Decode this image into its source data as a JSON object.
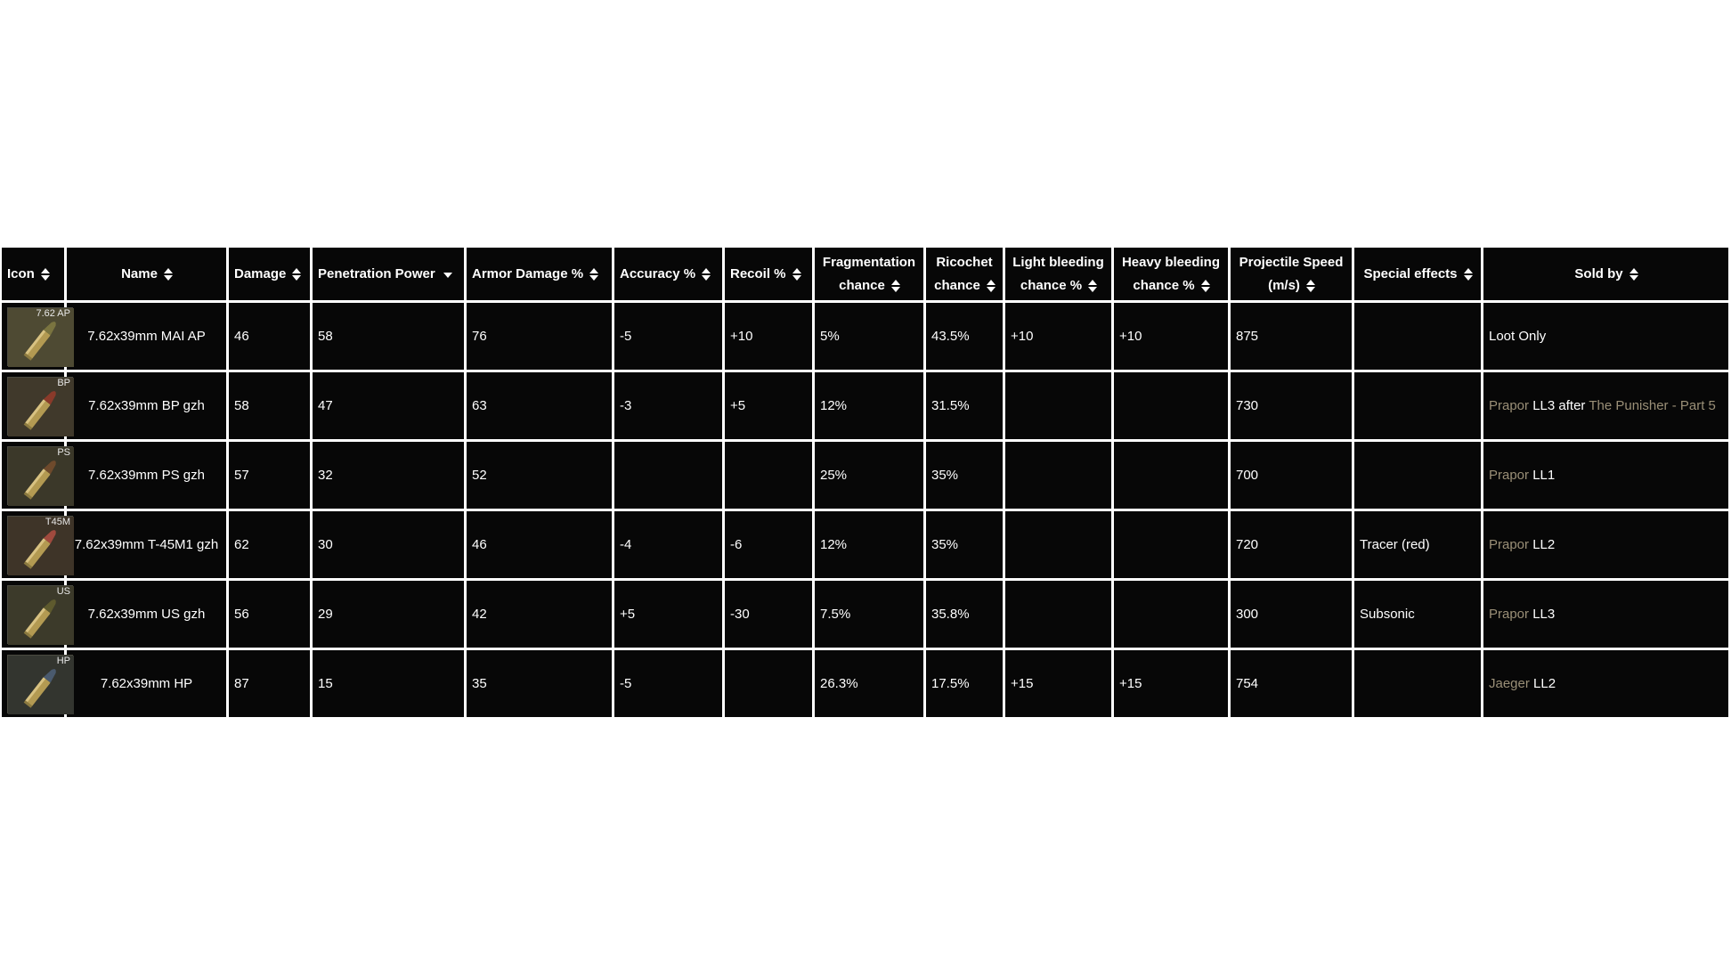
{
  "headers": {
    "icon": "Icon",
    "name": "Name",
    "damage": "Damage",
    "penetration": "Penetration Power",
    "armor": "Armor Damage %",
    "accuracy": "Accuracy %",
    "recoil": "Recoil %",
    "frag_l1": "Fragmentation",
    "frag_l2": "chance",
    "rico_l1": "Ricochet",
    "rico_l2": "chance",
    "light_l1": "Light bleeding",
    "light_l2": "chance %",
    "heavy_l1": "Heavy bleeding",
    "heavy_l2": "chance %",
    "speed_l1": "Projectile Speed",
    "speed_l2": "(m/s)",
    "special": "Special effects",
    "sold": "Sold by"
  },
  "colors": {
    "cell_bg": "#070707",
    "name_link": "#9a8f77",
    "negative": "#c41313",
    "positive": "#2f8f2f"
  },
  "rows": [
    {
      "icon_tag": "7.62 AP",
      "icon_tint": "#4e4a33",
      "tip_color": "#7a7440",
      "name": "7.62x39mm MAI AP",
      "damage": "46",
      "penetration": "58",
      "armor": "76",
      "accuracy": "-5",
      "recoil": "+10",
      "frag": "5%",
      "rico": "43.5%",
      "light": "+10",
      "heavy": "+10",
      "speed": "875",
      "special": "",
      "sold": {
        "trader": "",
        "ll": "",
        "after": "",
        "quest": "",
        "plain": "Loot Only"
      }
    },
    {
      "icon_tag": "BP",
      "icon_tint": "#40392b",
      "tip_color": "#8a3a2a",
      "name": "7.62x39mm BP gzh",
      "damage": "58",
      "penetration": "47",
      "armor": "63",
      "accuracy": "-3",
      "recoil": "+5",
      "frag": "12%",
      "rico": "31.5%",
      "light": "",
      "heavy": "",
      "speed": "730",
      "special": "",
      "sold": {
        "trader": "Prapor",
        "ll": "LL3",
        "after": "after",
        "quest": "The Punisher - Part 5",
        "plain": ""
      }
    },
    {
      "icon_tag": "PS",
      "icon_tint": "#3b3829",
      "tip_color": "#6e4a2c",
      "name": "7.62x39mm PS gzh",
      "damage": "57",
      "penetration": "32",
      "armor": "52",
      "accuracy": "",
      "recoil": "",
      "frag": "25%",
      "rico": "35%",
      "light": "",
      "heavy": "",
      "speed": "700",
      "special": "",
      "sold": {
        "trader": "Prapor",
        "ll": "LL1",
        "after": "",
        "quest": "",
        "plain": ""
      }
    },
    {
      "icon_tag": "T45M",
      "icon_tint": "#3e3428",
      "tip_color": "#a04a3e",
      "name": "7.62x39mm T-45M1 gzh",
      "damage": "62",
      "penetration": "30",
      "armor": "46",
      "accuracy": "-4",
      "recoil": "-6",
      "frag": "12%",
      "rico": "35%",
      "light": "",
      "heavy": "",
      "speed": "720",
      "special": "Tracer (red)",
      "sold": {
        "trader": "Prapor",
        "ll": "LL2",
        "after": "",
        "quest": "",
        "plain": ""
      }
    },
    {
      "icon_tag": "US",
      "icon_tint": "#3c3a2a",
      "tip_color": "#5e5a2e",
      "name": "7.62x39mm US gzh",
      "damage": "56",
      "penetration": "29",
      "armor": "42",
      "accuracy": "+5",
      "recoil": "-30",
      "frag": "7.5%",
      "rico": "35.8%",
      "light": "",
      "heavy": "",
      "speed": "300",
      "special": "Subsonic",
      "sold": {
        "trader": "Prapor",
        "ll": "LL3",
        "after": "",
        "quest": "",
        "plain": ""
      }
    },
    {
      "icon_tag": "HP",
      "icon_tint": "#33352f",
      "tip_color": "#4a5a6e",
      "name": "7.62x39mm HP",
      "damage": "87",
      "penetration": "15",
      "armor": "35",
      "accuracy": "-5",
      "recoil": "",
      "frag": "26.3%",
      "rico": "17.5%",
      "light": "+15",
      "heavy": "+15",
      "speed": "754",
      "special": "",
      "sold": {
        "trader": "Jaeger",
        "ll": "LL2",
        "after": "",
        "quest": "",
        "plain": ""
      }
    }
  ]
}
